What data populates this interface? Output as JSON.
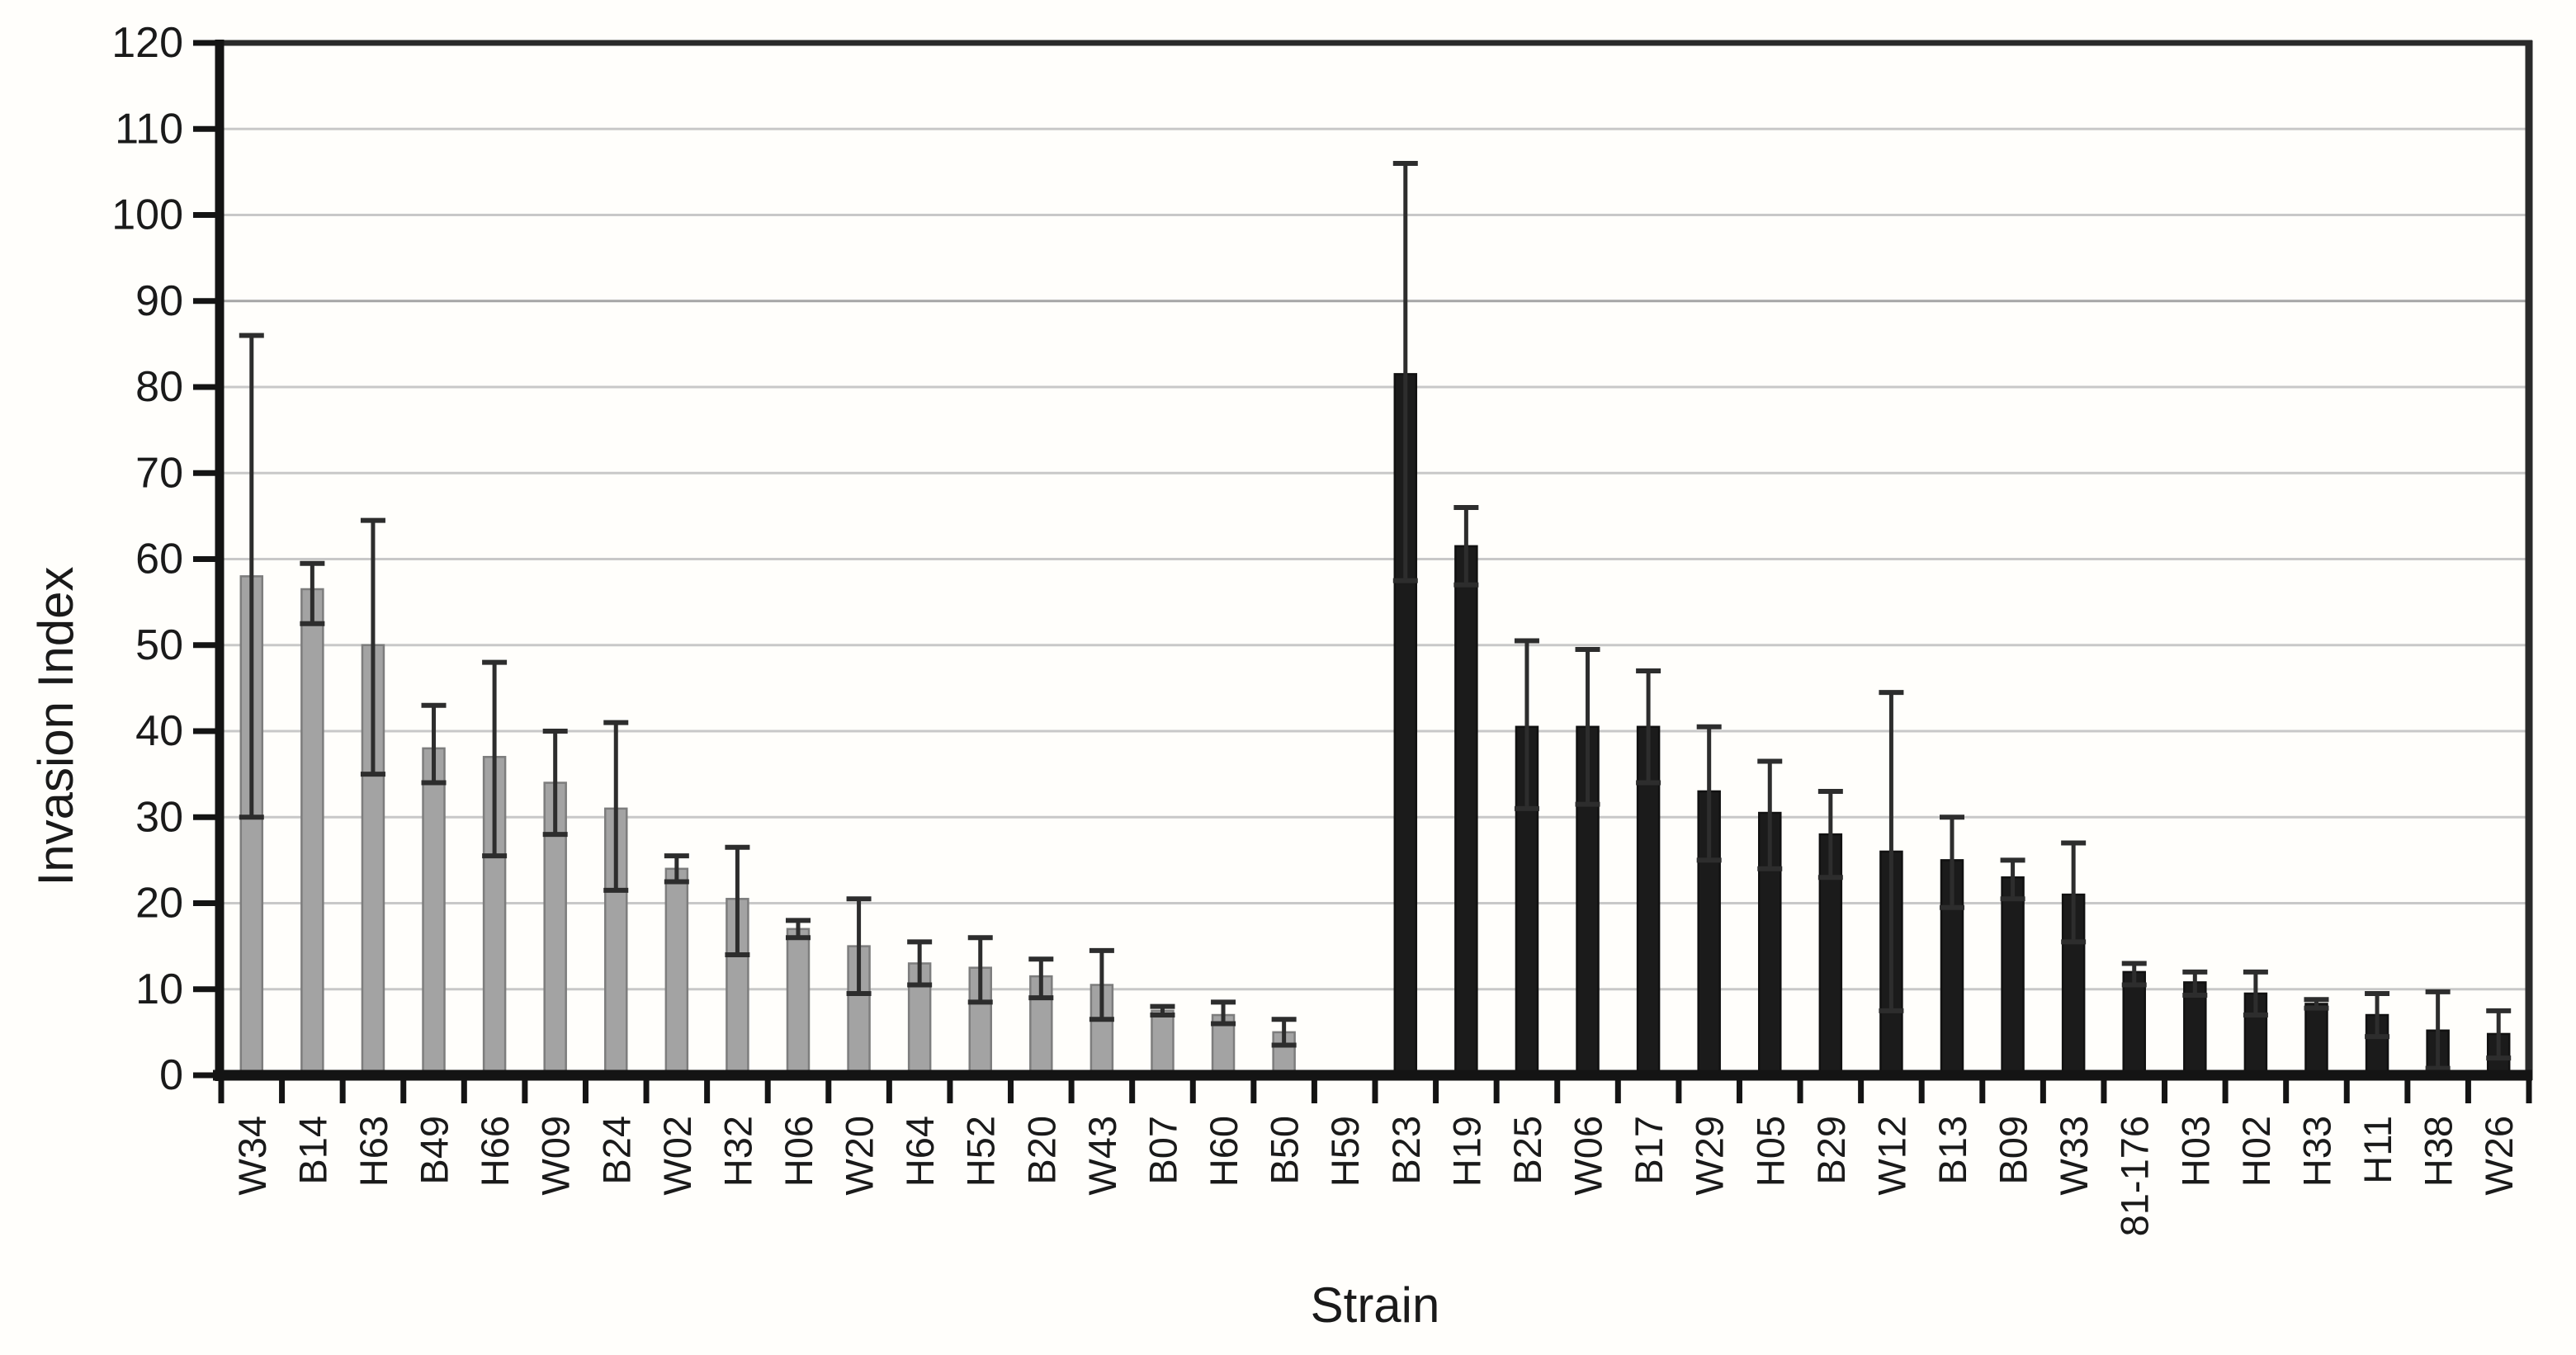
{
  "chart_data": {
    "type": "bar",
    "title": "",
    "xlabel": "Strain",
    "ylabel": "Invasion Index",
    "ylim": [
      0,
      120
    ],
    "ytick_step": 10,
    "yticks": [
      0,
      10,
      20,
      30,
      40,
      50,
      60,
      70,
      80,
      90,
      100,
      110,
      120
    ],
    "grid": true,
    "legend": "none",
    "error_bars": true,
    "groups": [
      {
        "name": "gray-strains",
        "fill": "#a3a3a3",
        "stroke": "#7d7d7d"
      },
      {
        "name": "black-strains",
        "fill": "#1b1b1b",
        "stroke": "#111111"
      }
    ],
    "bars": [
      {
        "label": "W34",
        "group": "gray",
        "value": 58,
        "err_low": 30,
        "err_high": 86
      },
      {
        "label": "B14",
        "group": "gray",
        "value": 56.5,
        "err_low": 52.5,
        "err_high": 59.5
      },
      {
        "label": "H63",
        "group": "gray",
        "value": 50,
        "err_low": 35,
        "err_high": 64.5
      },
      {
        "label": "B49",
        "group": "gray",
        "value": 38,
        "err_low": 34,
        "err_high": 43
      },
      {
        "label": "H66",
        "group": "gray",
        "value": 37,
        "err_low": 25.5,
        "err_high": 48
      },
      {
        "label": "W09",
        "group": "gray",
        "value": 34,
        "err_low": 28,
        "err_high": 40
      },
      {
        "label": "B24",
        "group": "gray",
        "value": 31,
        "err_low": 21.5,
        "err_high": 41
      },
      {
        "label": "W02",
        "group": "gray",
        "value": 24,
        "err_low": 22.5,
        "err_high": 25.5
      },
      {
        "label": "H32",
        "group": "gray",
        "value": 20.5,
        "err_low": 14,
        "err_high": 26.5
      },
      {
        "label": "H06",
        "group": "gray",
        "value": 17,
        "err_low": 16,
        "err_high": 18
      },
      {
        "label": "W20",
        "group": "gray",
        "value": 15,
        "err_low": 9.5,
        "err_high": 20.5
      },
      {
        "label": "H64",
        "group": "gray",
        "value": 13,
        "err_low": 10.5,
        "err_high": 15.5
      },
      {
        "label": "H52",
        "group": "gray",
        "value": 12.5,
        "err_low": 8.5,
        "err_high": 16
      },
      {
        "label": "B20",
        "group": "gray",
        "value": 11.5,
        "err_low": 9,
        "err_high": 13.5
      },
      {
        "label": "W43",
        "group": "gray",
        "value": 10.5,
        "err_low": 6.5,
        "err_high": 14.5
      },
      {
        "label": "B07",
        "group": "gray",
        "value": 7.5,
        "err_low": 7,
        "err_high": 8
      },
      {
        "label": "H60",
        "group": "gray",
        "value": 7,
        "err_low": 6,
        "err_high": 8.5
      },
      {
        "label": "B50",
        "group": "gray",
        "value": 5,
        "err_low": 3.5,
        "err_high": 6.5
      },
      {
        "label": "H59",
        "group": "gray",
        "value": 0.5,
        "err_low": null,
        "err_high": null
      },
      {
        "label": "B23",
        "group": "black",
        "value": 81.5,
        "err_low": 57.5,
        "err_high": 106
      },
      {
        "label": "H19",
        "group": "black",
        "value": 61.5,
        "err_low": 57,
        "err_high": 66
      },
      {
        "label": "B25",
        "group": "black",
        "value": 40.5,
        "err_low": 31,
        "err_high": 50.5
      },
      {
        "label": "W06",
        "group": "black",
        "value": 40.5,
        "err_low": 31.5,
        "err_high": 49.5
      },
      {
        "label": "B17",
        "group": "black",
        "value": 40.5,
        "err_low": 34,
        "err_high": 47
      },
      {
        "label": "W29",
        "group": "black",
        "value": 33,
        "err_low": 25,
        "err_high": 40.5
      },
      {
        "label": "H05",
        "group": "black",
        "value": 30.5,
        "err_low": 24,
        "err_high": 36.5
      },
      {
        "label": "B29",
        "group": "black",
        "value": 28,
        "err_low": 23,
        "err_high": 33
      },
      {
        "label": "W12",
        "group": "black",
        "value": 26,
        "err_low": 7.5,
        "err_high": 44.5
      },
      {
        "label": "B13",
        "group": "black",
        "value": 25,
        "err_low": 19.5,
        "err_high": 30
      },
      {
        "label": "B09",
        "group": "black",
        "value": 23,
        "err_low": 20.5,
        "err_high": 25
      },
      {
        "label": "W33",
        "group": "black",
        "value": 21,
        "err_low": 15.5,
        "err_high": 27
      },
      {
        "label": "81-176",
        "group": "black",
        "value": 12,
        "err_low": 10.5,
        "err_high": 13
      },
      {
        "label": "H03",
        "group": "black",
        "value": 10.8,
        "err_low": 9.3,
        "err_high": 12
      },
      {
        "label": "H02",
        "group": "black",
        "value": 9.5,
        "err_low": 7,
        "err_high": 12
      },
      {
        "label": "H33",
        "group": "black",
        "value": 8.3,
        "err_low": 7.8,
        "err_high": 8.8
      },
      {
        "label": "H11",
        "group": "black",
        "value": 7,
        "err_low": 4.5,
        "err_high": 9.5
      },
      {
        "label": "H38",
        "group": "black",
        "value": 5.2,
        "err_low": 0.8,
        "err_high": 9.7
      },
      {
        "label": "W26",
        "group": "black",
        "value": 4.8,
        "err_low": 2,
        "err_high": 7.5
      }
    ]
  },
  "colors": {
    "background": "#fffefb",
    "axis": "#141414",
    "frame": "#2a2a2a",
    "gridline": "#c8c8c8",
    "gridline_dark": "#a6a6a6",
    "error_bar": "#2d2d2d",
    "text": "#1a1a1a",
    "gray_bar_fill": "#a3a3a3",
    "gray_bar_stroke": "#7d7d7d",
    "black_bar_fill": "#1b1b1b"
  }
}
